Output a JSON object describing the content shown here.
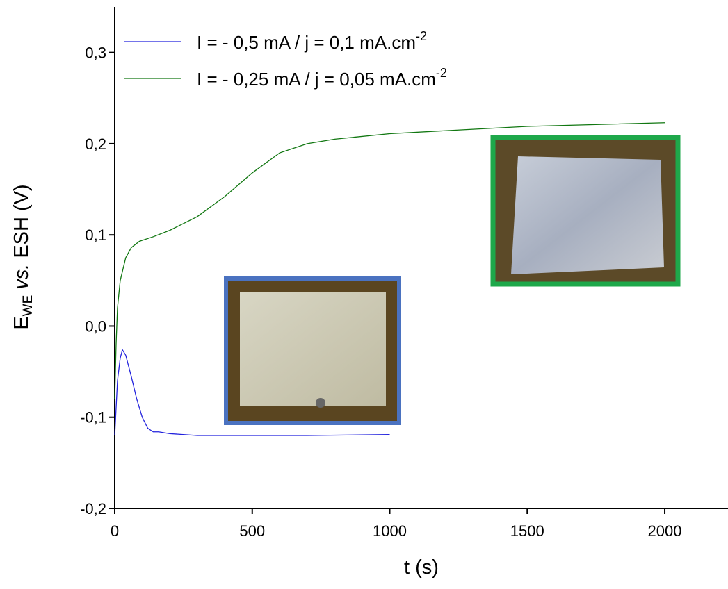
{
  "chart_data": {
    "type": "line",
    "x_label": "t (s)",
    "y_label": {
      "main": "E",
      "sub": "WE",
      "italic": "vs.",
      "rest": "ESH (V)"
    },
    "xlim": [
      0,
      2230
    ],
    "ylim": [
      -0.2,
      0.35
    ],
    "xticks": [
      0,
      500,
      1000,
      1500,
      2000
    ],
    "yticks": [
      {
        "value": -0.2,
        "label": "-0,2"
      },
      {
        "value": -0.1,
        "label": "-0,1"
      },
      {
        "value": 0,
        "label": "0,0"
      },
      {
        "value": 0.1,
        "label": "0,1"
      },
      {
        "value": 0.2,
        "label": "0,2"
      },
      {
        "value": 0.3,
        "label": "0,3"
      }
    ],
    "series": [
      {
        "name": "I =  - 0,5 mA / j = 0,1 mA.cm",
        "name_sup": "-2",
        "color": "#2222dd",
        "x": [
          0,
          5,
          10,
          20,
          28,
          40,
          60,
          80,
          100,
          120,
          140,
          160,
          200,
          300,
          500,
          700,
          1000
        ],
        "values": [
          -0.12,
          -0.09,
          -0.06,
          -0.035,
          -0.026,
          -0.032,
          -0.055,
          -0.08,
          -0.1,
          -0.112,
          -0.116,
          -0.116,
          -0.118,
          -0.12,
          -0.12,
          -0.12,
          -0.119
        ]
      },
      {
        "name": "I =  - 0,25 mA / j = 0,05 mA.cm",
        "name_sup": "-2",
        "color": "#117711",
        "x": [
          0,
          5,
          10,
          20,
          40,
          60,
          90,
          140,
          200,
          300,
          400,
          500,
          600,
          700,
          800,
          1000,
          1500,
          2000
        ],
        "values": [
          -0.08,
          -0.02,
          0.02,
          0.05,
          0.075,
          0.086,
          0.093,
          0.098,
          0.105,
          0.12,
          0.142,
          0.168,
          0.19,
          0.2,
          0.205,
          0.211,
          0.219,
          0.223
        ]
      }
    ]
  }
}
